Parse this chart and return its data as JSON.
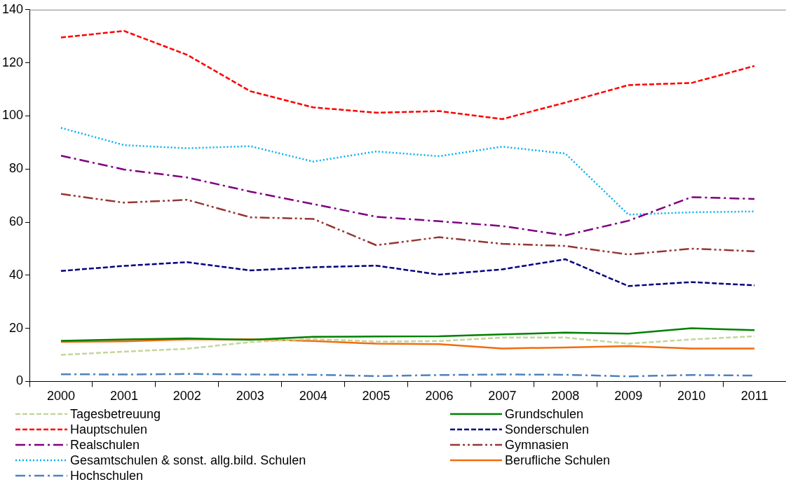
{
  "chart_data": {
    "type": "line",
    "categories": [
      "2000",
      "2001",
      "2002",
      "2003",
      "2004",
      "2005",
      "2006",
      "2007",
      "2008",
      "2009",
      "2010",
      "2011"
    ],
    "ylim": [
      0,
      140
    ],
    "yticks": [
      0,
      20,
      40,
      60,
      80,
      100,
      120,
      140
    ],
    "grid": false,
    "legend": "bottom",
    "marker": "none",
    "series": [
      {
        "name": "Tagesbetreuung",
        "color": "#c3d69b",
        "line_style": "dashed",
        "values": [
          10,
          11.2,
          12.3,
          14.8,
          16,
          15,
          15.2,
          16.5,
          16.5,
          14.2,
          15.8,
          17
        ]
      },
      {
        "name": "Grundschulen",
        "color": "#008000",
        "line_style": "solid",
        "values": [
          15.3,
          15.8,
          16.2,
          15.7,
          16.8,
          16.9,
          17,
          17.7,
          18.4,
          18,
          20,
          19.3
        ]
      },
      {
        "name": "Hauptschulen",
        "color": "#ff0000",
        "line_style": "dashed",
        "values": [
          129.5,
          132,
          123,
          109.3,
          103.2,
          101.2,
          101.8,
          98.8,
          105,
          111.6,
          112.4,
          118.8
        ]
      },
      {
        "name": "Sonderschulen",
        "color": "#000080",
        "line_style": "dashed",
        "values": [
          41.6,
          43.5,
          44.9,
          41.8,
          43,
          43.6,
          40.2,
          42.2,
          46,
          35.9,
          37.4,
          36.2
        ]
      },
      {
        "name": "Realschulen",
        "color": "#800080",
        "line_style": "dashdot",
        "values": [
          85,
          79.8,
          76.8,
          71.5,
          66.8,
          62,
          60.3,
          58.5,
          55,
          60.5,
          69.4,
          68.7
        ]
      },
      {
        "name": "Gymnasien",
        "color": "#953735",
        "line_style": "dashdotdot",
        "values": [
          70.6,
          67.3,
          68.4,
          61.8,
          61.2,
          51.3,
          54.3,
          51.8,
          51,
          47.8,
          50,
          49
        ]
      },
      {
        "name": "Gesamtschulen & sonst. allg.bild. Schulen",
        "color": "#00b0f0",
        "line_style": "dotted",
        "values": [
          95.5,
          89,
          87.8,
          88.6,
          82.8,
          86.6,
          84.8,
          88.4,
          85.8,
          62.8,
          63.7,
          64
        ]
      },
      {
        "name": "Berufliche Schulen",
        "color": "#f26c0d",
        "line_style": "solid",
        "values": [
          14.9,
          15.1,
          15.8,
          15.9,
          15.2,
          14.2,
          14,
          12.4,
          12.8,
          13.3,
          12.4,
          12.4
        ]
      },
      {
        "name": "Hochschulen",
        "color": "#4f81bd",
        "line_style": "dashdot",
        "values": [
          2.7,
          2.6,
          2.8,
          2.6,
          2.5,
          2,
          2.4,
          2.6,
          2.5,
          1.9,
          2.4,
          2.2
        ]
      }
    ]
  }
}
